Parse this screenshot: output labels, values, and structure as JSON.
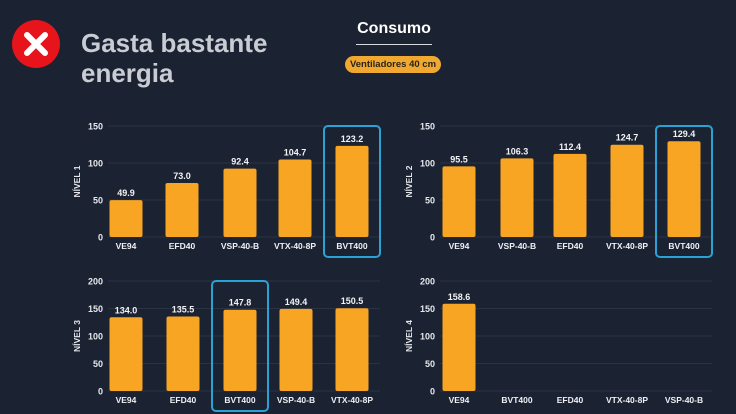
{
  "header": {
    "status_icon": "red-x-circle-icon",
    "title": "Gasta bastante energia",
    "section": "Consumo",
    "badge": "Ventiladores 40 cm"
  },
  "colors": {
    "background": "#1b2232",
    "bar": "#f8a523",
    "highlight": "#2aa2d6",
    "status": "#e8141c",
    "badge": "#f0a830"
  },
  "chart_data": [
    {
      "type": "bar",
      "ylabel": "NÍVEL 1",
      "ylim": [
        0,
        150
      ],
      "yticks": [
        0,
        50,
        100,
        150
      ],
      "grid": true,
      "categories": [
        "VE94",
        "EFD40",
        "VSP-40-B",
        "VTX-40-8P",
        "BVT400"
      ],
      "values": [
        49.9,
        73.0,
        92.4,
        104.7,
        123.2
      ],
      "highlight_index": 4
    },
    {
      "type": "bar",
      "ylabel": "NÍVEL 2",
      "ylim": [
        0,
        150
      ],
      "yticks": [
        0,
        50,
        100,
        150
      ],
      "grid": true,
      "categories": [
        "VE94",
        "VSP-40-B",
        "EFD40",
        "VTX-40-8P",
        "BVT400"
      ],
      "values": [
        95.5,
        106.3,
        112.4,
        124.7,
        129.4
      ],
      "highlight_index": 4
    },
    {
      "type": "bar",
      "ylabel": "NÍVEL 3",
      "ylim": [
        0,
        200
      ],
      "yticks": [
        0,
        50,
        100,
        150,
        200
      ],
      "grid": true,
      "categories": [
        "VE94",
        "EFD40",
        "BVT400",
        "VSP-40-B",
        "VTX-40-8P"
      ],
      "values": [
        134.0,
        135.5,
        147.8,
        149.4,
        150.5
      ],
      "highlight_index": 2
    },
    {
      "type": "bar",
      "ylabel": "NÍVEL 4",
      "ylim": [
        0,
        200
      ],
      "yticks": [
        0,
        50,
        100,
        150,
        200
      ],
      "grid": true,
      "categories": [
        "VE94",
        "BVT400",
        "EFD40",
        "VTX-40-8P",
        "VSP-40-B"
      ],
      "values": [
        158.6,
        null,
        null,
        null,
        null
      ],
      "highlight_index": null
    }
  ]
}
